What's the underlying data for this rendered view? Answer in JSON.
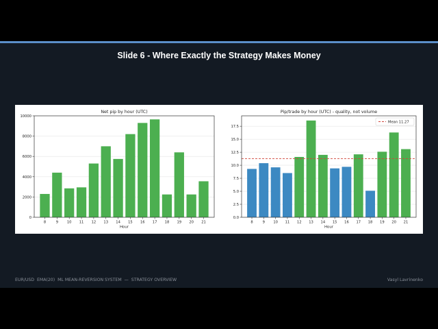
{
  "slide": {
    "title": "Slide 6 - Where Exactly the Strategy Makes Money",
    "accent_color": "#5b8fc9",
    "background": "#131a23",
    "footer_left": "EUR/USD  EMA(20)  ML MEAN-REVERSION SYSTEM  —  STRATEGY OVERVIEW",
    "footer_right": "Vasyl Lavrinenko"
  },
  "chart_data": [
    {
      "type": "bar",
      "title": "Net pip by hour (UTC)",
      "xlabel": "Hour",
      "ylabel": "",
      "categories": [
        "8",
        "9",
        "10",
        "11",
        "12",
        "13",
        "14",
        "15",
        "16",
        "17",
        "18",
        "19",
        "20",
        "21"
      ],
      "values": [
        2300,
        4400,
        2850,
        2950,
        5300,
        7000,
        5750,
        8200,
        9300,
        9650,
        2250,
        6400,
        2250,
        3550
      ],
      "colors": [
        "#4caf50",
        "#4caf50",
        "#4caf50",
        "#4caf50",
        "#4caf50",
        "#4caf50",
        "#4caf50",
        "#4caf50",
        "#4caf50",
        "#4caf50",
        "#4caf50",
        "#4caf50",
        "#4caf50",
        "#4caf50"
      ],
      "ylim": [
        0,
        10000
      ],
      "yticks": [
        "0",
        "2000",
        "4000",
        "6000",
        "8000",
        "10000"
      ],
      "grid": true
    },
    {
      "type": "bar",
      "title": "Pip/trade by hour (UTC) - quality, not volume",
      "xlabel": "Hour",
      "ylabel": "",
      "categories": [
        "8",
        "9",
        "10",
        "11",
        "12",
        "13",
        "14",
        "15",
        "16",
        "17",
        "18",
        "19",
        "20",
        "21"
      ],
      "values": [
        9.3,
        10.4,
        9.6,
        8.5,
        11.6,
        18.6,
        12.0,
        9.4,
        9.7,
        12.1,
        5.1,
        12.6,
        16.3,
        13.1
      ],
      "colors": [
        "#3c89c2",
        "#3c89c2",
        "#3c89c2",
        "#3c89c2",
        "#4caf50",
        "#4caf50",
        "#4caf50",
        "#3c89c2",
        "#3c89c2",
        "#4caf50",
        "#3c89c2",
        "#4caf50",
        "#4caf50",
        "#4caf50"
      ],
      "ylim": [
        0,
        19.5
      ],
      "yticks": [
        "0.0",
        "2.5",
        "5.0",
        "7.5",
        "10.0",
        "12.5",
        "15.0",
        "17.5"
      ],
      "grid": true,
      "reference_line": {
        "value": 11.27,
        "label": "Mean 11.27",
        "color": "#d0453a"
      },
      "legend_position": "top-right"
    }
  ]
}
